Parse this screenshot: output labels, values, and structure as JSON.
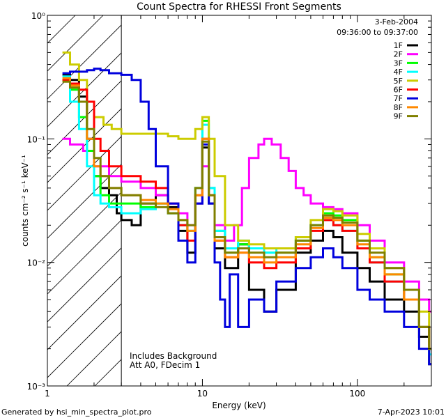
{
  "chart_data": {
    "type": "line",
    "title": "Count Spectra for RHESSI Front Segments",
    "xlabel": "Energy (keV)",
    "ylabel": "counts cm⁻² s⁻¹ keV⁻¹",
    "xscale": "log",
    "yscale": "log",
    "xlim": [
      1,
      300
    ],
    "ylim": [
      0.001,
      1
    ],
    "x_ticks": [
      {
        "value": 1,
        "label": "1"
      },
      {
        "value": 10,
        "label": "10"
      },
      {
        "value": 100,
        "label": "100"
      }
    ],
    "y_ticks": [
      {
        "value": 1,
        "label": "10⁰"
      },
      {
        "value": 0.1,
        "label": "10⁻¹"
      },
      {
        "value": 0.01,
        "label": "10⁻²"
      },
      {
        "value": 0.001,
        "label": "10⁻³"
      }
    ],
    "hatched_region_max_energy": 3,
    "legend_header": [
      "3-Feb-2004",
      "09:36:00 to 09:37:00"
    ],
    "annotations": [
      "Includes Background",
      "Att A0, FDecim 1"
    ],
    "footer_left": "Generated by hsi_min_spectra_plot.pro",
    "footer_right": "7-Apr-2023 10:01",
    "series": [
      {
        "name": "1F",
        "color": "#000000",
        "points": [
          [
            1.25,
            0.33
          ],
          [
            1.4,
            0.3
          ],
          [
            1.6,
            0.22
          ],
          [
            1.8,
            0.1
          ],
          [
            2.0,
            0.05
          ],
          [
            2.2,
            0.04
          ],
          [
            2.5,
            0.035
          ],
          [
            2.8,
            0.025
          ],
          [
            3.0,
            0.022
          ],
          [
            3.5,
            0.02
          ],
          [
            4,
            0.03
          ],
          [
            5,
            0.035
          ],
          [
            6,
            0.028
          ],
          [
            7,
            0.018
          ],
          [
            8,
            0.012
          ],
          [
            9,
            0.03
          ],
          [
            10,
            0.085
          ],
          [
            11,
            0.03
          ],
          [
            12,
            0.013
          ],
          [
            14,
            0.009
          ],
          [
            17,
            0.014
          ],
          [
            20,
            0.006
          ],
          [
            25,
            0.004
          ],
          [
            30,
            0.006
          ],
          [
            40,
            0.012
          ],
          [
            50,
            0.015
          ],
          [
            60,
            0.018
          ],
          [
            70,
            0.016
          ],
          [
            80,
            0.012
          ],
          [
            100,
            0.009
          ],
          [
            120,
            0.007
          ],
          [
            150,
            0.005
          ],
          [
            200,
            0.004
          ],
          [
            250,
            0.0025
          ],
          [
            290,
            0.0015
          ]
        ]
      },
      {
        "name": "2F",
        "color": "#ff00ff",
        "points": [
          [
            1.25,
            0.1
          ],
          [
            1.4,
            0.09
          ],
          [
            1.7,
            0.08
          ],
          [
            2.0,
            0.06
          ],
          [
            2.5,
            0.05
          ],
          [
            3.0,
            0.045
          ],
          [
            4,
            0.04
          ],
          [
            5,
            0.035
          ],
          [
            6,
            0.03
          ],
          [
            7,
            0.025
          ],
          [
            8,
            0.02
          ],
          [
            9,
            0.03
          ],
          [
            10,
            0.06
          ],
          [
            11,
            0.04
          ],
          [
            12,
            0.02
          ],
          [
            14,
            0.015
          ],
          [
            16,
            0.02
          ],
          [
            18,
            0.04
          ],
          [
            20,
            0.07
          ],
          [
            23,
            0.09
          ],
          [
            25,
            0.1
          ],
          [
            28,
            0.09
          ],
          [
            32,
            0.07
          ],
          [
            36,
            0.055
          ],
          [
            40,
            0.04
          ],
          [
            45,
            0.035
          ],
          [
            50,
            0.03
          ],
          [
            60,
            0.028
          ],
          [
            70,
            0.027
          ],
          [
            80,
            0.025
          ],
          [
            100,
            0.02
          ],
          [
            120,
            0.015
          ],
          [
            150,
            0.01
          ],
          [
            200,
            0.007
          ],
          [
            250,
            0.005
          ],
          [
            290,
            0.004
          ]
        ]
      },
      {
        "name": "3F",
        "color": "#00ff00",
        "points": [
          [
            1.25,
            0.3
          ],
          [
            1.4,
            0.25
          ],
          [
            1.6,
            0.15
          ],
          [
            1.8,
            0.08
          ],
          [
            2.0,
            0.05
          ],
          [
            2.2,
            0.035
          ],
          [
            2.5,
            0.03
          ],
          [
            3.0,
            0.03
          ],
          [
            4,
            0.028
          ],
          [
            5,
            0.03
          ],
          [
            6,
            0.025
          ],
          [
            7,
            0.02
          ],
          [
            8,
            0.018
          ],
          [
            9,
            0.04
          ],
          [
            10,
            0.14
          ],
          [
            11,
            0.04
          ],
          [
            12,
            0.018
          ],
          [
            14,
            0.012
          ],
          [
            17,
            0.014
          ],
          [
            20,
            0.013
          ],
          [
            25,
            0.012
          ],
          [
            30,
            0.012
          ],
          [
            40,
            0.015
          ],
          [
            50,
            0.02
          ],
          [
            60,
            0.025
          ],
          [
            70,
            0.024
          ],
          [
            80,
            0.022
          ],
          [
            100,
            0.015
          ],
          [
            120,
            0.011
          ],
          [
            150,
            0.008
          ],
          [
            200,
            0.005
          ],
          [
            250,
            0.003
          ],
          [
            290,
            0.002
          ]
        ]
      },
      {
        "name": "4F",
        "color": "#00ffff",
        "points": [
          [
            1.25,
            0.32
          ],
          [
            1.4,
            0.2
          ],
          [
            1.6,
            0.12
          ],
          [
            1.8,
            0.06
          ],
          [
            2.0,
            0.035
          ],
          [
            2.2,
            0.03
          ],
          [
            2.5,
            0.028
          ],
          [
            3.0,
            0.025
          ],
          [
            4,
            0.027
          ],
          [
            5,
            0.03
          ],
          [
            6,
            0.025
          ],
          [
            7,
            0.02
          ],
          [
            8,
            0.018
          ],
          [
            9,
            0.04
          ],
          [
            10,
            0.13
          ],
          [
            11,
            0.04
          ],
          [
            12,
            0.018
          ],
          [
            14,
            0.013
          ],
          [
            17,
            0.015
          ],
          [
            20,
            0.013
          ],
          [
            25,
            0.012
          ],
          [
            30,
            0.013
          ],
          [
            40,
            0.016
          ],
          [
            50,
            0.02
          ],
          [
            60,
            0.022
          ],
          [
            70,
            0.02
          ],
          [
            80,
            0.018
          ],
          [
            100,
            0.013
          ],
          [
            120,
            0.01
          ],
          [
            150,
            0.007
          ],
          [
            200,
            0.005
          ],
          [
            250,
            0.003
          ],
          [
            290,
            0.0018
          ]
        ]
      },
      {
        "name": "5F",
        "color": "#cccc00",
        "points": [
          [
            1.25,
            0.5
          ],
          [
            1.4,
            0.4
          ],
          [
            1.6,
            0.3
          ],
          [
            1.8,
            0.2
          ],
          [
            2.0,
            0.15
          ],
          [
            2.3,
            0.13
          ],
          [
            2.6,
            0.12
          ],
          [
            3.0,
            0.11
          ],
          [
            4,
            0.11
          ],
          [
            5,
            0.11
          ],
          [
            6,
            0.105
          ],
          [
            7,
            0.1
          ],
          [
            8,
            0.1
          ],
          [
            9,
            0.12
          ],
          [
            10,
            0.15
          ],
          [
            11,
            0.1
          ],
          [
            12,
            0.05
          ],
          [
            14,
            0.02
          ],
          [
            17,
            0.015
          ],
          [
            20,
            0.014
          ],
          [
            25,
            0.013
          ],
          [
            30,
            0.013
          ],
          [
            40,
            0.016
          ],
          [
            50,
            0.022
          ],
          [
            60,
            0.027
          ],
          [
            70,
            0.026
          ],
          [
            80,
            0.024
          ],
          [
            100,
            0.017
          ],
          [
            120,
            0.013
          ],
          [
            150,
            0.009
          ],
          [
            200,
            0.006
          ],
          [
            250,
            0.004
          ],
          [
            290,
            0.002
          ]
        ]
      },
      {
        "name": "6F",
        "color": "#ff0000",
        "points": [
          [
            1.25,
            0.3
          ],
          [
            1.4,
            0.28
          ],
          [
            1.6,
            0.25
          ],
          [
            1.8,
            0.2
          ],
          [
            2.0,
            0.1
          ],
          [
            2.2,
            0.08
          ],
          [
            2.5,
            0.06
          ],
          [
            3.0,
            0.05
          ],
          [
            4,
            0.045
          ],
          [
            5,
            0.04
          ],
          [
            6,
            0.03
          ],
          [
            7,
            0.02
          ],
          [
            8,
            0.015
          ],
          [
            9,
            0.035
          ],
          [
            10,
            0.1
          ],
          [
            11,
            0.035
          ],
          [
            12,
            0.015
          ],
          [
            14,
            0.011
          ],
          [
            17,
            0.012
          ],
          [
            20,
            0.01
          ],
          [
            25,
            0.009
          ],
          [
            30,
            0.01
          ],
          [
            40,
            0.013
          ],
          [
            50,
            0.018
          ],
          [
            60,
            0.022
          ],
          [
            70,
            0.02
          ],
          [
            80,
            0.018
          ],
          [
            100,
            0.013
          ],
          [
            120,
            0.01
          ],
          [
            150,
            0.007
          ],
          [
            200,
            0.005
          ],
          [
            250,
            0.003
          ],
          [
            290,
            0.002
          ]
        ]
      },
      {
        "name": "7F",
        "color": "#0000dd",
        "points": [
          [
            1.25,
            0.34
          ],
          [
            1.4,
            0.35
          ],
          [
            1.6,
            0.35
          ],
          [
            1.8,
            0.36
          ],
          [
            2.0,
            0.37
          ],
          [
            2.2,
            0.36
          ],
          [
            2.5,
            0.34
          ],
          [
            3.0,
            0.33
          ],
          [
            3.5,
            0.3
          ],
          [
            4,
            0.2
          ],
          [
            4.5,
            0.12
          ],
          [
            5,
            0.06
          ],
          [
            6,
            0.03
          ],
          [
            7,
            0.015
          ],
          [
            8,
            0.01
          ],
          [
            9,
            0.03
          ],
          [
            10,
            0.09
          ],
          [
            11,
            0.03
          ],
          [
            12,
            0.01
          ],
          [
            13,
            0.005
          ],
          [
            14,
            0.003
          ],
          [
            15,
            0.008
          ],
          [
            17,
            0.003
          ],
          [
            20,
            0.005
          ],
          [
            25,
            0.004
          ],
          [
            30,
            0.007
          ],
          [
            40,
            0.009
          ],
          [
            50,
            0.011
          ],
          [
            60,
            0.013
          ],
          [
            70,
            0.011
          ],
          [
            80,
            0.009
          ],
          [
            100,
            0.006
          ],
          [
            120,
            0.005
          ],
          [
            150,
            0.004
          ],
          [
            200,
            0.003
          ],
          [
            250,
            0.002
          ],
          [
            290,
            0.0015
          ]
        ]
      },
      {
        "name": "8F",
        "color": "#ff8800",
        "points": [
          [
            1.25,
            0.31
          ],
          [
            1.4,
            0.27
          ],
          [
            1.6,
            0.2
          ],
          [
            1.8,
            0.1
          ],
          [
            2.0,
            0.06
          ],
          [
            2.2,
            0.05
          ],
          [
            2.5,
            0.04
          ],
          [
            3.0,
            0.035
          ],
          [
            4,
            0.032
          ],
          [
            5,
            0.03
          ],
          [
            6,
            0.027
          ],
          [
            7,
            0.022
          ],
          [
            8,
            0.018
          ],
          [
            9,
            0.035
          ],
          [
            10,
            0.1
          ],
          [
            11,
            0.035
          ],
          [
            12,
            0.015
          ],
          [
            14,
            0.011
          ],
          [
            17,
            0.012
          ],
          [
            20,
            0.011
          ],
          [
            25,
            0.01
          ],
          [
            30,
            0.011
          ],
          [
            40,
            0.014
          ],
          [
            50,
            0.019
          ],
          [
            60,
            0.023
          ],
          [
            70,
            0.022
          ],
          [
            80,
            0.02
          ],
          [
            100,
            0.014
          ],
          [
            120,
            0.011
          ],
          [
            150,
            0.008
          ],
          [
            200,
            0.005
          ],
          [
            250,
            0.003
          ],
          [
            290,
            0.002
          ]
        ]
      },
      {
        "name": "9F",
        "color": "#808000",
        "points": [
          [
            1.25,
            0.29
          ],
          [
            1.4,
            0.26
          ],
          [
            1.6,
            0.2
          ],
          [
            1.8,
            0.12
          ],
          [
            2.0,
            0.07
          ],
          [
            2.2,
            0.05
          ],
          [
            2.5,
            0.04
          ],
          [
            3.0,
            0.035
          ],
          [
            4,
            0.03
          ],
          [
            5,
            0.028
          ],
          [
            6,
            0.025
          ],
          [
            7,
            0.022
          ],
          [
            8,
            0.02
          ],
          [
            9,
            0.04
          ],
          [
            10,
            0.095
          ],
          [
            11,
            0.035
          ],
          [
            12,
            0.016
          ],
          [
            14,
            0.012
          ],
          [
            17,
            0.013
          ],
          [
            20,
            0.012
          ],
          [
            25,
            0.011
          ],
          [
            30,
            0.012
          ],
          [
            40,
            0.015
          ],
          [
            50,
            0.02
          ],
          [
            60,
            0.024
          ],
          [
            70,
            0.023
          ],
          [
            80,
            0.021
          ],
          [
            100,
            0.015
          ],
          [
            120,
            0.012
          ],
          [
            150,
            0.009
          ],
          [
            200,
            0.006
          ],
          [
            250,
            0.003
          ],
          [
            290,
            0.002
          ]
        ]
      }
    ]
  }
}
